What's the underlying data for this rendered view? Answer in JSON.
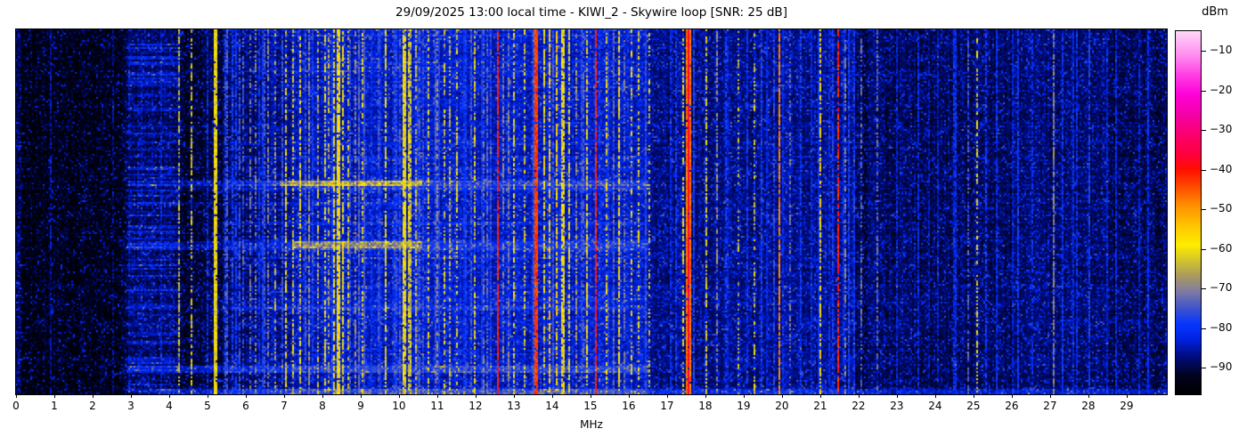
{
  "title": "29/09/2025 13:00 local time - KIWI_2 - Skywire loop [SNR: 25 dB]",
  "axes": {
    "x_label": "MHz",
    "x_ticks": [
      0,
      1,
      2,
      3,
      4,
      5,
      6,
      7,
      8,
      9,
      10,
      11,
      12,
      13,
      14,
      15,
      16,
      17,
      18,
      19,
      20,
      21,
      22,
      23,
      24,
      25,
      26,
      27,
      28,
      29
    ],
    "x_range_mhz": [
      0,
      30.05
    ]
  },
  "colorbar": {
    "label": "dBm",
    "ticks": [
      {
        "v": -10,
        "t": "−10"
      },
      {
        "v": -20,
        "t": "−20"
      },
      {
        "v": -30,
        "t": "−30"
      },
      {
        "v": -40,
        "t": "−40"
      },
      {
        "v": -50,
        "t": "−50"
      },
      {
        "v": -60,
        "t": "−60"
      },
      {
        "v": -70,
        "t": "−70"
      },
      {
        "v": -80,
        "t": "−80"
      },
      {
        "v": -90,
        "t": "−90"
      }
    ],
    "vmax": -5,
    "vmin": -96.7
  },
  "chart_data": {
    "type": "heatmap",
    "title": "29/09/2025 13:00 local time - KIWI_2 - Skywire loop [SNR: 25 dB]",
    "xlabel": "MHz",
    "value_unit": "dBm",
    "value_range": [
      -96.7,
      -5
    ],
    "x_range_mhz": [
      0,
      30.05
    ],
    "seed": 20250929,
    "colormap_stops": [
      {
        "v": -97,
        "c": "#000000"
      },
      {
        "v": -92,
        "c": "#00031f"
      },
      {
        "v": -87,
        "c": "#000d85"
      },
      {
        "v": -83,
        "c": "#0022e0"
      },
      {
        "v": -79,
        "c": "#0837ff"
      },
      {
        "v": -75,
        "c": "#4055cc"
      },
      {
        "v": -71,
        "c": "#7d7aa6"
      },
      {
        "v": -67,
        "c": "#a89a60"
      },
      {
        "v": -63,
        "c": "#d4c430"
      },
      {
        "v": -59,
        "c": "#ffee00"
      },
      {
        "v": -54,
        "c": "#ffc400"
      },
      {
        "v": -49,
        "c": "#ff9000"
      },
      {
        "v": -44,
        "c": "#ff4800"
      },
      {
        "v": -40,
        "c": "#ff0f00"
      },
      {
        "v": -36,
        "c": "#ff0040"
      },
      {
        "v": -31,
        "c": "#fb0070"
      },
      {
        "v": -26,
        "c": "#f400a8"
      },
      {
        "v": -21,
        "c": "#ff00d8"
      },
      {
        "v": -16,
        "c": "#ff3fe4"
      },
      {
        "v": -11,
        "c": "#ff8df0"
      },
      {
        "v": -5,
        "c": "#ffd7f8"
      }
    ],
    "noise_profile_dbm": [
      [
        0,
        0.15,
        -92
      ],
      [
        0.15,
        2.75,
        -96
      ],
      [
        2.75,
        2.95,
        -94
      ],
      [
        2.95,
        4.3,
        -91.5
      ],
      [
        4.3,
        5.4,
        -94
      ],
      [
        5.4,
        6.6,
        -91
      ],
      [
        6.6,
        7.2,
        -89.5
      ],
      [
        7.2,
        10.6,
        -87.5
      ],
      [
        10.6,
        16.5,
        -87
      ],
      [
        16.5,
        18.6,
        -90
      ],
      [
        18.6,
        21.9,
        -89.5
      ],
      [
        21.9,
        26,
        -92
      ],
      [
        26,
        28.5,
        -91
      ],
      [
        28.5,
        30.1,
        -92.5
      ]
    ],
    "band_fields": [
      "y0_px",
      "y1_px",
      "f0_mhz",
      "f1_mhz",
      "boost_db"
    ],
    "bands": [
      [
        170,
        176,
        4.3,
        16.5,
        6
      ],
      [
        170,
        176,
        6.9,
        10.6,
        11
      ],
      [
        176,
        181,
        4.3,
        16.5,
        3
      ],
      [
        193,
        198,
        4.0,
        10.5,
        3
      ],
      [
        237,
        247,
        4.3,
        16.5,
        5
      ],
      [
        238,
        245,
        7.2,
        10.6,
        10
      ],
      [
        310,
        316,
        5.0,
        16.0,
        3
      ],
      [
        378,
        386,
        4.2,
        16.5,
        7
      ],
      [
        403,
        410,
        3.7,
        30.1,
        5
      ],
      [
        404,
        410,
        4.3,
        16.5,
        3
      ],
      [
        170,
        176,
        2.9,
        4.3,
        5
      ],
      [
        237,
        247,
        2.9,
        4.3,
        4
      ],
      [
        378,
        386,
        2.9,
        4.3,
        4
      ]
    ],
    "stripe_fields": [
      "f_mhz",
      "width_px",
      "level_dbm",
      "duty",
      "jitter_db"
    ],
    "stripes": [
      [
        0.9,
        1,
        -85,
        0.6,
        3
      ],
      [
        2.55,
        1,
        -86,
        0.5,
        3
      ],
      [
        3.3,
        1,
        -85,
        0.5,
        3
      ],
      [
        3.78,
        1,
        -84,
        0.6,
        3
      ],
      [
        4.26,
        2,
        -64,
        0.55,
        4
      ],
      [
        4.58,
        2,
        -63,
        0.6,
        4
      ],
      [
        5.0,
        1,
        -80,
        0.5,
        3
      ],
      [
        5.23,
        3,
        -56,
        0.92,
        5
      ],
      [
        5.45,
        1,
        -76,
        0.5,
        4
      ],
      [
        5.74,
        2,
        -79,
        0.8,
        3
      ],
      [
        5.95,
        1,
        -74,
        0.5,
        4
      ],
      [
        6.1,
        2,
        -71,
        0.5,
        4
      ],
      [
        6.25,
        2,
        -70,
        0.5,
        4
      ],
      [
        6.42,
        2,
        -78,
        0.7,
        3
      ],
      [
        6.56,
        1,
        -70,
        0.5,
        4
      ],
      [
        6.78,
        1,
        -66,
        0.4,
        4
      ],
      [
        7.07,
        2,
        -62,
        0.6,
        5
      ],
      [
        7.22,
        2,
        -63,
        0.5,
        4
      ],
      [
        7.4,
        2,
        -61,
        0.6,
        5
      ],
      [
        7.55,
        1,
        -75,
        0.6,
        3
      ],
      [
        7.67,
        1,
        -69,
        0.6,
        4
      ],
      [
        7.88,
        2,
        -66,
        0.5,
        5
      ],
      [
        8.05,
        2,
        -62,
        0.65,
        4
      ],
      [
        8.17,
        2,
        -66,
        0.5,
        5
      ],
      [
        8.3,
        2,
        -60,
        0.7,
        4
      ],
      [
        8.42,
        3,
        -55,
        0.85,
        5
      ],
      [
        8.55,
        2,
        -60,
        0.7,
        4
      ],
      [
        8.67,
        2,
        -63,
        0.5,
        4
      ],
      [
        8.84,
        1,
        -69,
        0.5,
        4
      ],
      [
        9.05,
        2,
        -62,
        0.45,
        5
      ],
      [
        9.3,
        1,
        -80,
        0.6,
        3
      ],
      [
        9.51,
        1,
        -79,
        0.8,
        3
      ],
      [
        9.65,
        2,
        -61,
        0.7,
        4
      ],
      [
        9.9,
        1,
        -77,
        0.5,
        3
      ],
      [
        10.12,
        3,
        -56,
        0.9,
        5
      ],
      [
        10.28,
        3,
        -59,
        0.8,
        4
      ],
      [
        10.45,
        2,
        -64,
        0.5,
        4
      ],
      [
        10.62,
        1,
        -76,
        0.5,
        3
      ],
      [
        10.79,
        2,
        -62,
        0.5,
        5
      ],
      [
        10.98,
        1,
        -69,
        0.5,
        4
      ],
      [
        11.18,
        2,
        -63,
        0.5,
        5
      ],
      [
        11.35,
        2,
        -65,
        0.45,
        5
      ],
      [
        11.51,
        2,
        -62,
        0.5,
        5
      ],
      [
        11.74,
        2,
        -78,
        0.75,
        3
      ],
      [
        11.98,
        2,
        -62,
        0.55,
        4
      ],
      [
        12.2,
        1,
        -70,
        0.4,
        4
      ],
      [
        12.39,
        1,
        -77,
        0.5,
        3
      ],
      [
        12.56,
        2,
        -41,
        0.9,
        3
      ],
      [
        12.7,
        2,
        -70,
        0.55,
        4
      ],
      [
        12.84,
        1,
        -70,
        0.5,
        4
      ],
      [
        13.02,
        2,
        -61,
        0.5,
        5
      ],
      [
        13.26,
        2,
        -62,
        0.5,
        5
      ],
      [
        13.6,
        3,
        -39,
        0.95,
        3
      ],
      [
        13.78,
        2,
        -60,
        0.6,
        5
      ],
      [
        13.95,
        2,
        -56,
        0.7,
        6
      ],
      [
        14.1,
        2,
        -57,
        0.7,
        5
      ],
      [
        14.27,
        3,
        -56,
        0.8,
        5
      ],
      [
        14.45,
        2,
        -60,
        0.6,
        5
      ],
      [
        14.62,
        2,
        -68,
        0.5,
        5
      ],
      [
        14.8,
        1,
        -74,
        0.5,
        4
      ],
      [
        14.93,
        2,
        -60,
        0.65,
        5
      ],
      [
        15.16,
        2,
        -41,
        0.88,
        3
      ],
      [
        15.44,
        2,
        -61,
        0.5,
        5
      ],
      [
        15.6,
        1,
        -73,
        0.5,
        4
      ],
      [
        15.74,
        2,
        -59,
        0.7,
        5
      ],
      [
        15.9,
        1,
        -72,
        0.5,
        4
      ],
      [
        16.07,
        2,
        -62,
        0.45,
        5
      ],
      [
        16.26,
        2,
        -61,
        0.5,
        5
      ],
      [
        16.45,
        2,
        -77,
        0.7,
        3
      ],
      [
        16.56,
        2,
        -64,
        0.4,
        5
      ],
      [
        17.1,
        1,
        -80,
        0.5,
        3
      ],
      [
        17.25,
        1,
        -79,
        0.6,
        3
      ],
      [
        17.43,
        2,
        -60,
        0.5,
        5
      ],
      [
        17.56,
        5,
        -37,
        0.97,
        3
      ],
      [
        17.72,
        2,
        -78,
        0.8,
        3
      ],
      [
        18.02,
        2,
        -62,
        0.55,
        4
      ],
      [
        18.3,
        1,
        -69,
        0.5,
        4
      ],
      [
        18.6,
        1,
        -82,
        0.5,
        3
      ],
      [
        18.88,
        1,
        -64,
        0.3,
        4
      ],
      [
        19.28,
        2,
        -63,
        0.35,
        4
      ],
      [
        19.6,
        1,
        -81,
        0.5,
        3
      ],
      [
        19.93,
        2,
        -48,
        0.85,
        3
      ],
      [
        20.21,
        1,
        -71,
        0.4,
        4
      ],
      [
        20.51,
        1,
        -79,
        0.6,
        3
      ],
      [
        20.75,
        1,
        -81,
        0.5,
        3
      ],
      [
        20.98,
        2,
        -57,
        0.6,
        5
      ],
      [
        21.25,
        1,
        -80,
        0.5,
        3
      ],
      [
        21.49,
        2,
        -41,
        0.75,
        4
      ],
      [
        21.67,
        1,
        -70,
        0.5,
        4
      ],
      [
        21.9,
        1,
        -78,
        0.5,
        3
      ],
      [
        22.09,
        1,
        -73,
        0.5,
        4
      ],
      [
        22.49,
        1,
        -72,
        0.5,
        4
      ],
      [
        23.0,
        1,
        -82,
        0.5,
        3
      ],
      [
        23.58,
        1,
        -80,
        0.6,
        3
      ],
      [
        24.07,
        1,
        -83,
        0.5,
        3
      ],
      [
        24.86,
        1,
        -75,
        0.5,
        4
      ],
      [
        25.09,
        2,
        -62,
        0.45,
        4
      ],
      [
        25.33,
        1,
        -79,
        0.6,
        3
      ],
      [
        26.02,
        1,
        -82,
        0.5,
        3
      ],
      [
        26.56,
        1,
        -80,
        0.6,
        3
      ],
      [
        27.09,
        2,
        -70,
        0.75,
        4
      ],
      [
        27.33,
        1,
        -79,
        0.6,
        3
      ],
      [
        27.6,
        1,
        -81,
        0.5,
        3
      ],
      [
        28.02,
        1,
        -78,
        0.7,
        3
      ],
      [
        28.49,
        1,
        -82,
        0.5,
        3
      ],
      [
        29.35,
        1,
        -82,
        0.5,
        3
      ]
    ],
    "minor_stripe_groups": [
      {
        "count": 44,
        "f0": 5.4,
        "f1": 16.5,
        "lv0": -80,
        "lv1": -73,
        "d0": 0.5,
        "d1": 0.85
      },
      {
        "count": 10,
        "f0": 16.8,
        "f1": 22.0,
        "lv0": -82,
        "lv1": -76,
        "d0": 0.5,
        "d1": 0.8
      },
      {
        "count": 9,
        "f0": 22.3,
        "f1": 29.6,
        "lv0": -84,
        "lv1": -79,
        "d0": 0.5,
        "d1": 0.8
      }
    ]
  }
}
